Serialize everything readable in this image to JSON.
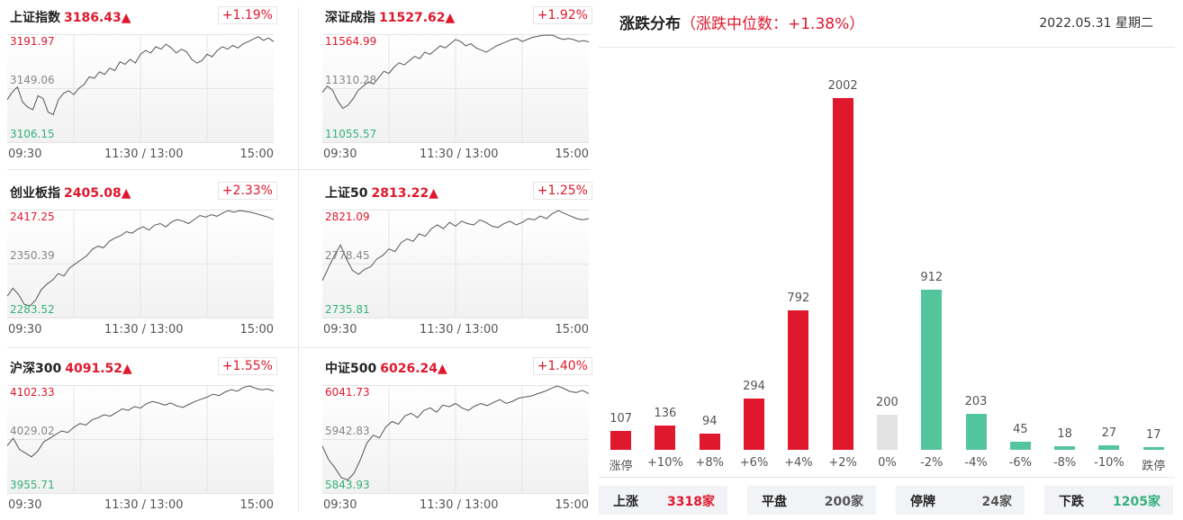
{
  "indices": [
    {
      "name": "上证指数",
      "value": "3186.43▲",
      "change": "+1.19%",
      "high": "3191.97",
      "mid": "3149.06",
      "low": "3106.15",
      "times": [
        "09:30",
        "11:30 / 13:00",
        "15:00"
      ],
      "series": [
        3140,
        3146,
        3150,
        3138,
        3134,
        3132,
        3143,
        3141,
        3130,
        3128,
        3140,
        3145,
        3147,
        3144,
        3149,
        3152,
        3158,
        3157,
        3162,
        3160,
        3165,
        3163,
        3170,
        3168,
        3172,
        3169,
        3176,
        3179,
        3177,
        3182,
        3180,
        3184,
        3181,
        3177,
        3180,
        3178,
        3172,
        3169,
        3171,
        3176,
        3174,
        3179,
        3182,
        3180,
        3183,
        3181,
        3184,
        3186,
        3188,
        3190,
        3187,
        3189,
        3186
      ]
    },
    {
      "name": "深证成指",
      "value": "11527.62▲",
      "change": "+1.92%",
      "high": "11564.99",
      "mid": "11310.28",
      "low": "11055.57",
      "times": [
        "09:30",
        "11:30 / 13:00",
        "15:00"
      ],
      "series": [
        11290,
        11320,
        11300,
        11250,
        11215,
        11230,
        11260,
        11300,
        11320,
        11340,
        11330,
        11360,
        11390,
        11380,
        11410,
        11430,
        11420,
        11440,
        11460,
        11450,
        11480,
        11470,
        11490,
        11510,
        11500,
        11520,
        11540,
        11530,
        11510,
        11520,
        11500,
        11490,
        11480,
        11495,
        11510,
        11520,
        11530,
        11540,
        11545,
        11530,
        11540,
        11550,
        11555,
        11560,
        11565,
        11560,
        11548,
        11540,
        11545,
        11540,
        11530,
        11535,
        11528
      ]
    },
    {
      "name": "创业板指",
      "value": "2405.08▲",
      "change": "+2.33%",
      "high": "2417.25",
      "mid": "2350.39",
      "low": "2283.52",
      "times": [
        "09:30",
        "11:30 / 13:00",
        "15:00"
      ],
      "series": [
        2310,
        2320,
        2312,
        2300,
        2298,
        2305,
        2318,
        2325,
        2330,
        2338,
        2335,
        2345,
        2350,
        2355,
        2360,
        2368,
        2372,
        2370,
        2378,
        2382,
        2385,
        2390,
        2388,
        2393,
        2396,
        2392,
        2398,
        2400,
        2396,
        2402,
        2405,
        2403,
        2400,
        2405,
        2410,
        2408,
        2411,
        2409,
        2413,
        2416,
        2414,
        2417,
        2415,
        2414,
        2412,
        2410,
        2408,
        2405
      ]
    },
    {
      "name": "上证50",
      "value": "2813.22▲",
      "change": "+1.25%",
      "high": "2821.09",
      "mid": "2778.45",
      "low": "2735.81",
      "times": [
        "09:30",
        "11:30 / 13:00",
        "15:00"
      ],
      "series": [
        2765,
        2775,
        2785,
        2793,
        2782,
        2773,
        2770,
        2774,
        2776,
        2782,
        2785,
        2790,
        2788,
        2795,
        2798,
        2796,
        2802,
        2800,
        2806,
        2809,
        2806,
        2811,
        2808,
        2812,
        2810,
        2809,
        2813,
        2811,
        2808,
        2807,
        2810,
        2812,
        2809,
        2811,
        2814,
        2813,
        2816,
        2814,
        2818,
        2821,
        2818,
        2816,
        2814,
        2813,
        2814
      ]
    },
    {
      "name": "沪深300",
      "value": "4091.52▲",
      "change": "+1.55%",
      "high": "4102.33",
      "mid": "4029.02",
      "low": "3955.71",
      "times": [
        "09:30",
        "11:30 / 13:00",
        "15:00"
      ],
      "series": [
        4020,
        4030,
        4015,
        4010,
        4005,
        4012,
        4025,
        4030,
        4035,
        4040,
        4038,
        4045,
        4050,
        4048,
        4055,
        4058,
        4062,
        4060,
        4065,
        4070,
        4068,
        4073,
        4071,
        4077,
        4080,
        4078,
        4075,
        4078,
        4074,
        4072,
        4076,
        4080,
        4083,
        4086,
        4090,
        4088,
        4093,
        4096,
        4094,
        4099,
        4102,
        4098,
        4096,
        4097,
        4094
      ]
    },
    {
      "name": "中证500",
      "value": "6026.24▲",
      "change": "+1.40%",
      "high": "6041.73",
      "mid": "5942.83",
      "low": "5843.93",
      "times": [
        "09:30",
        "11:30 / 13:00",
        "15:00"
      ],
      "series": [
        5930,
        5905,
        5890,
        5872,
        5868,
        5880,
        5905,
        5935,
        5950,
        5945,
        5965,
        5975,
        5970,
        5985,
        5990,
        5982,
        5995,
        6000,
        5992,
        6005,
        6002,
        6008,
        6000,
        5995,
        6003,
        6008,
        6004,
        6010,
        6015,
        6008,
        6012,
        6018,
        6020,
        6022,
        6026,
        6030,
        6035,
        6040,
        6036,
        6030,
        6028,
        6032,
        6026
      ]
    }
  ],
  "dist": {
    "title": "涨跌分布",
    "median": "（涨跌中位数：+1.38%）",
    "date": "2022.05.31 星期二"
  },
  "summary": [
    {
      "label": "上涨",
      "value": "3318家",
      "color": "#e0182d"
    },
    {
      "label": "平盘",
      "value": "200家",
      "color": "#555555"
    },
    {
      "label": "停牌",
      "value": "24家",
      "color": "#555555"
    },
    {
      "label": "下跌",
      "value": "1205家",
      "color": "#35b07e"
    }
  ],
  "colors": {
    "up": "#e0182d",
    "flat": "#e3e3e3",
    "down": "#52c59c"
  },
  "chart_data": {
    "type": "bar",
    "categories": [
      "涨停",
      "+10%",
      "+8%",
      "+6%",
      "+4%",
      "+2%",
      "0%",
      "-2%",
      "-4%",
      "-6%",
      "-8%",
      "-10%",
      "跌停"
    ],
    "values": [
      107,
      136,
      94,
      294,
      792,
      2002,
      200,
      912,
      203,
      45,
      18,
      27,
      17
    ],
    "value_labels": [
      "107",
      "136",
      "94",
      "294",
      "792",
      "2002",
      "200",
      "912",
      "203",
      "45",
      "18",
      "27",
      "17"
    ],
    "kinds": [
      "up",
      "up",
      "up",
      "up",
      "up",
      "up",
      "flat",
      "down",
      "down",
      "down",
      "down",
      "down",
      "down"
    ],
    "title": "涨跌分布",
    "xlabel": "",
    "ylabel": ""
  }
}
